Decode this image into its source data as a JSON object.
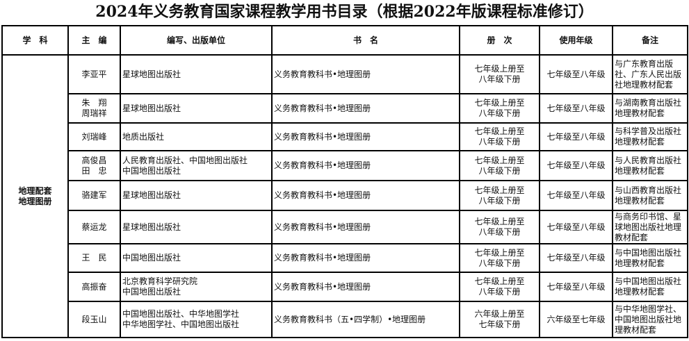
{
  "title": "2024年义务教育国家课程教学用书目录（根据2022年版课程标准修订）",
  "headers": [
    "学　科",
    "主　编",
    "编写、出版单位",
    "书　名",
    "册　次",
    "使用年级",
    "备注"
  ],
  "subject": "地理配套\n地理图册",
  "rows": [
    {
      "editor": "李亚平",
      "publisher": "星球地图出版社",
      "book": "义务教育教科书•地理图册",
      "volumes": "七年级上册至\n八年级下册",
      "grades": "七年级至八年级",
      "note": "与广东教育出版社、广东人民出版社地理教材配套"
    },
    {
      "editor": "朱　翔\n周瑞祥",
      "publisher": "星球地图出版社",
      "book": "义务教育教科书•地理图册",
      "volumes": "七年级上册至\n八年级下册",
      "grades": "七年级至八年级",
      "note": "与湖南教育出版社地理教材配套"
    },
    {
      "editor": "刘瑞峰",
      "publisher": "地质出版社",
      "book": "义务教育教科书•地理图册",
      "volumes": "七年级上册至\n八年级下册",
      "grades": "七年级至八年级",
      "note": "与科学普及出版社地理教材配套"
    },
    {
      "editor": "高俊昌\n田　忠",
      "publisher": "人民教育出版社、中国地图出版社\n中国地图出版社",
      "book": "义务教育教科书•地理图册",
      "volumes": "七年级上册至\n八年级下册",
      "grades": "七年级至八年级",
      "note": "与人民教育出版社地理教材配套"
    },
    {
      "editor": "骆建军",
      "publisher": "星球地图出版社",
      "book": "义务教育教科书•地理图册",
      "volumes": "七年级上册至\n八年级下册",
      "grades": "七年级至八年级",
      "note": "与山西教育出版社地理教材配套"
    },
    {
      "editor": "蔡运龙",
      "publisher": "星球地图出版社",
      "book": "义务教育教科书•地理图册",
      "volumes": "七年级上册至\n八年级下册",
      "grades": "七年级至八年级",
      "note": "与商务印书馆、星球地图出版社地理教材配套"
    },
    {
      "editor": "王　民",
      "publisher": "中国地图出版社",
      "book": "义务教育教科书•地理图册",
      "volumes": "七年级上册至\n八年级下册",
      "grades": "七年级至八年级",
      "note": "与中国地图出版社地理教材配套"
    },
    {
      "editor": "高振奋",
      "publisher": "北京教育科学研究院\n中国地图出版社",
      "book": "义务教育教科书•地理图册",
      "volumes": "七年级上册至\n八年级下册",
      "grades": "七年级至八年级",
      "note": "与中国地图出版社地理教材配套"
    },
    {
      "editor": "段玉山",
      "publisher": "中国地图出版社、中华地图学社\n中华地图学社、中国地图出版社",
      "book": "义务教育教科书（五•四学制）•地理图册",
      "volumes": "六年级上册至\n七年级下册",
      "grades": "六年级至七年级",
      "note": "与中华地图学社、中国地图出版社地理教材配套"
    }
  ]
}
